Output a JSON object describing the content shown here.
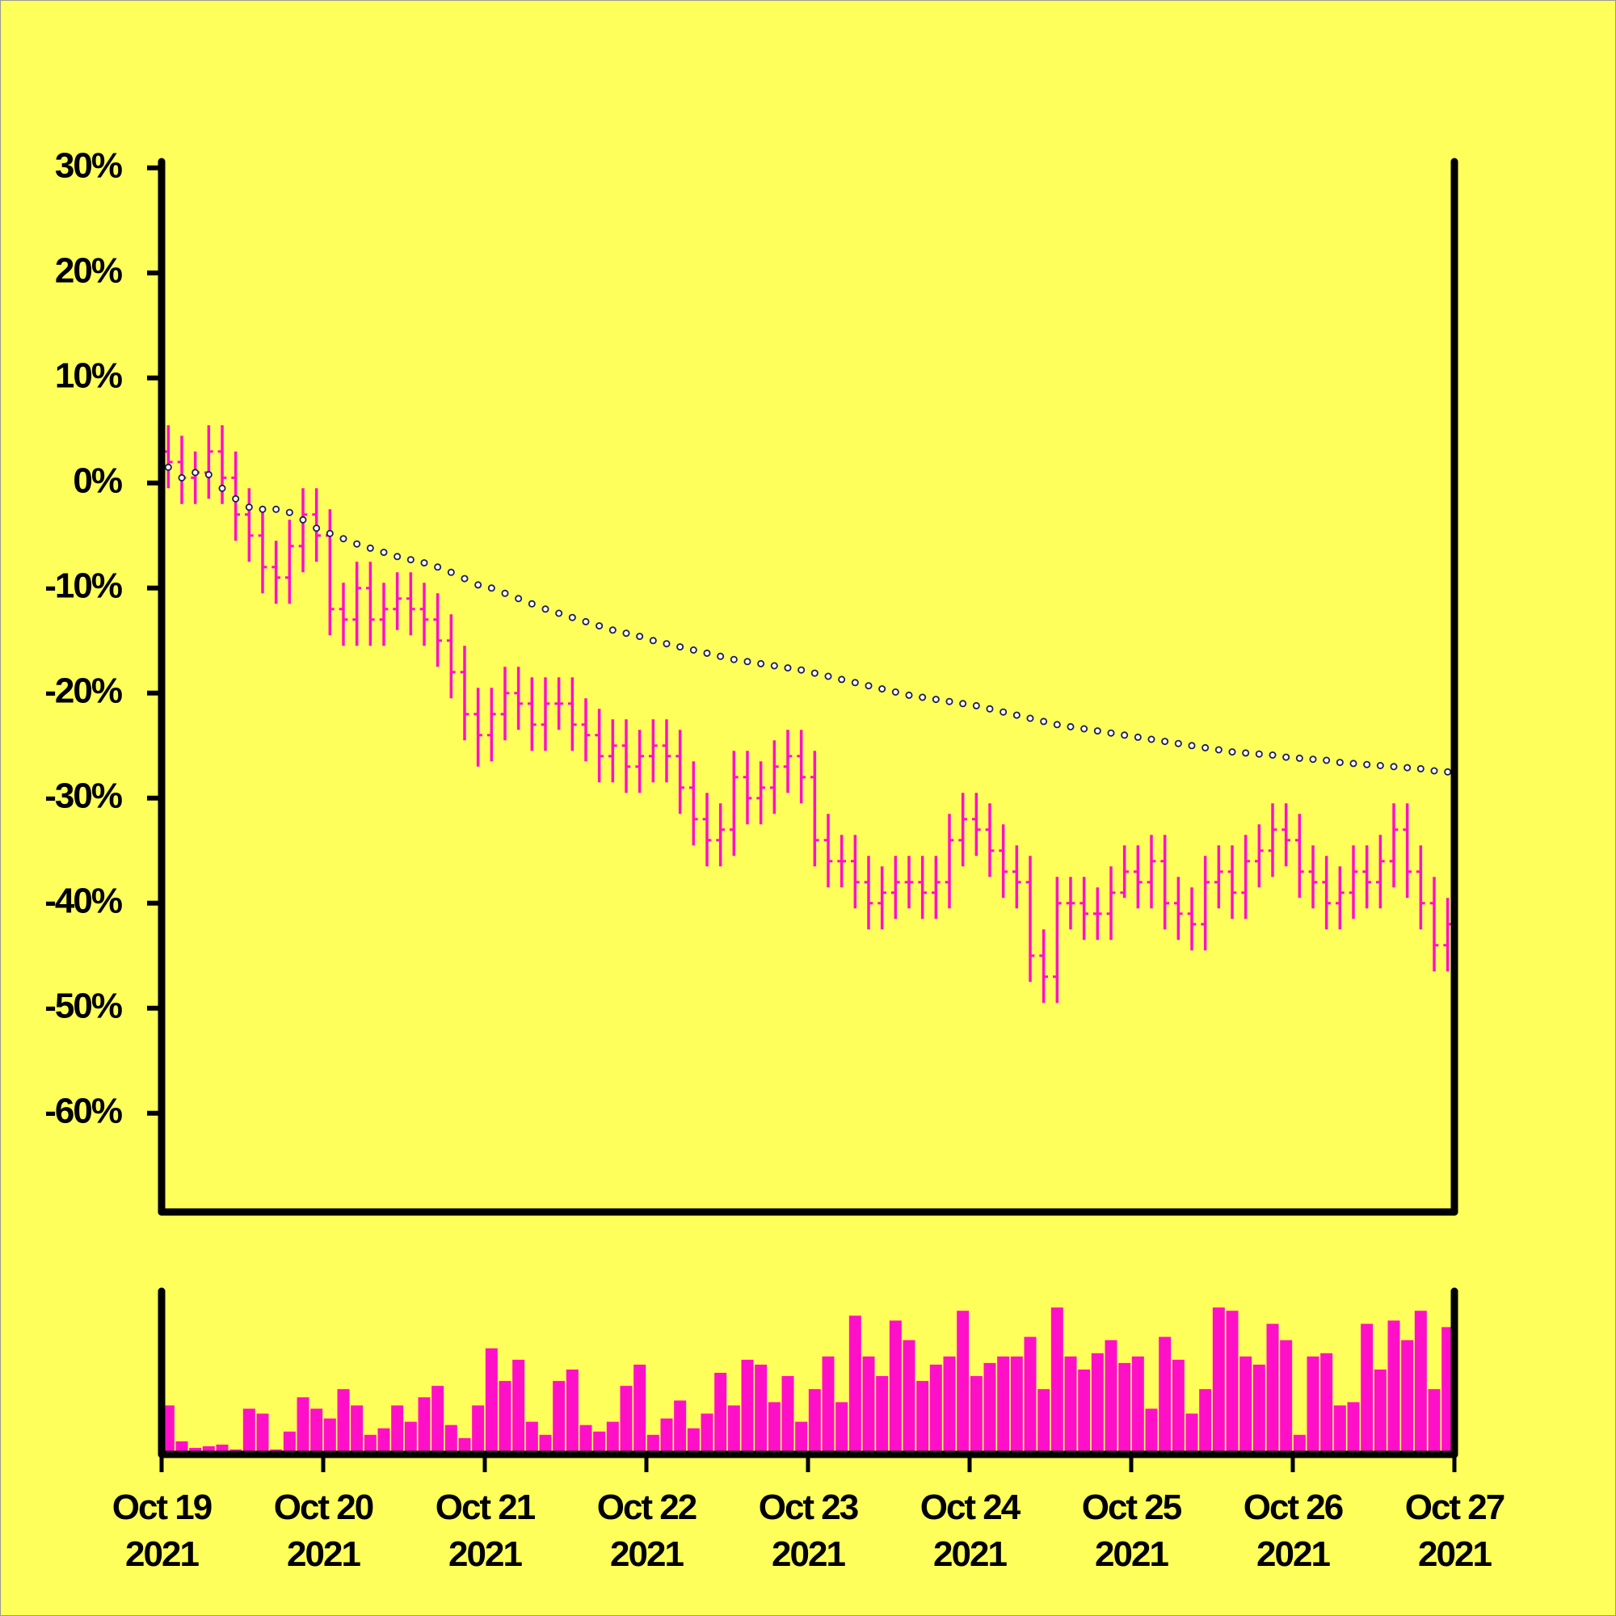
{
  "chart_data": {
    "type": "ohlc",
    "xticks": [
      "Oct 19 2021",
      "Oct 20 2021",
      "Oct 21 2021",
      "Oct 22 2021",
      "Oct 23 2021",
      "Oct 24 2021",
      "Oct 25 2021",
      "Oct 26 2021",
      "Oct 27 2021"
    ],
    "ylim": [
      -69.4,
      30.6
    ],
    "yticks": [
      {
        "value": 30,
        "label": "30%"
      },
      {
        "value": 20,
        "label": "20%"
      },
      {
        "value": 10,
        "label": "10%"
      },
      {
        "value": 0,
        "label": "0%"
      },
      {
        "value": -10,
        "label": "-10%"
      },
      {
        "value": -20,
        "label": "-20%"
      },
      {
        "value": -30,
        "label": "-30%"
      },
      {
        "value": -40,
        "label": "-40%"
      },
      {
        "value": -50,
        "label": "-50%"
      },
      {
        "value": -60,
        "label": "-60%"
      }
    ],
    "bars": {
      "color": "#ff10c8",
      "open": [
        3,
        2,
        0.5,
        1,
        3,
        0.5,
        -3,
        -5,
        -8,
        -9,
        -6,
        -3,
        -5,
        -12,
        -13,
        -10,
        -13,
        -12,
        -11,
        -12,
        -13,
        -15,
        -18,
        -22,
        -24,
        -22,
        -20,
        -21,
        -23,
        -21,
        -21,
        -23,
        -24,
        -26,
        -25,
        -27,
        -26,
        -25,
        -26,
        -29,
        -32,
        -34,
        -33,
        -28,
        -30,
        -29,
        -27,
        -26,
        -28,
        -34,
        -36,
        -36,
        -38,
        -40,
        -39,
        -38,
        -38,
        -39,
        -38,
        -34,
        -32,
        -33,
        -35,
        -37,
        -38,
        -45,
        -47,
        -40,
        -40,
        -41,
        -41,
        -39,
        -37,
        -38,
        -36,
        -40,
        -41,
        -42,
        -38,
        -37,
        -39,
        -36,
        -35,
        -33,
        -34,
        -37,
        -38,
        -40,
        -39,
        -37,
        -38,
        -36,
        -33,
        -37,
        -40,
        -44
      ],
      "high": [
        5.5,
        4.5,
        3,
        5.5,
        5.5,
        3,
        -0.5,
        -2.5,
        -5.5,
        -3.5,
        -0.5,
        -0.5,
        -2.5,
        -9.5,
        -7.5,
        -7.5,
        -9.5,
        -8.5,
        -8.5,
        -9.5,
        -10.5,
        -12.5,
        -15.5,
        -19.5,
        -19.5,
        -17.5,
        -17.5,
        -18.5,
        -18.5,
        -18.5,
        -18.5,
        -20.5,
        -21.5,
        -22.5,
        -22.5,
        -23.5,
        -22.5,
        -22.5,
        -23.5,
        -26.5,
        -29.5,
        -30.5,
        -25.5,
        -25.5,
        -26.5,
        -24.5,
        -23.5,
        -23.5,
        -25.5,
        -31.5,
        -33.5,
        -33.5,
        -35.5,
        -36.5,
        -35.5,
        -35.5,
        -35.5,
        -35.5,
        -31.5,
        -29.5,
        -29.5,
        -30.5,
        -32.5,
        -34.5,
        -35.5,
        -42.5,
        -37.5,
        -37.5,
        -37.5,
        -38.5,
        -36.5,
        -34.5,
        -34.5,
        -33.5,
        -33.5,
        -37.5,
        -38.5,
        -35.5,
        -34.5,
        -34.5,
        -33.5,
        -32.5,
        -30.5,
        -30.5,
        -31.5,
        -34.5,
        -35.5,
        -36.5,
        -34.5,
        -34.5,
        -33.5,
        -30.5,
        -30.5,
        -34.5,
        -37.5,
        -39.5
      ],
      "low": [
        -0.5,
        -2,
        -2,
        -1.5,
        -2,
        -5.5,
        -7.5,
        -10.5,
        -11.5,
        -11.5,
        -8.5,
        -7.5,
        -14.5,
        -15.5,
        -15.5,
        -15.5,
        -15.5,
        -14,
        -14.5,
        -15.5,
        -17.5,
        -20.5,
        -24.5,
        -27,
        -26.5,
        -24.5,
        -23.5,
        -25.5,
        -25.5,
        -23.5,
        -25.5,
        -26.5,
        -28.5,
        -28.5,
        -29.5,
        -29.5,
        -28.5,
        -28.5,
        -31.5,
        -34.5,
        -36.5,
        -36.5,
        -35.5,
        -32.5,
        -32.5,
        -31.5,
        -29.5,
        -30.5,
        -36.5,
        -38.5,
        -38.5,
        -40.5,
        -42.5,
        -42.5,
        -41.5,
        -40.5,
        -41.5,
        -41.5,
        -40.5,
        -36.5,
        -35.5,
        -37.5,
        -39.5,
        -40.5,
        -47.5,
        -49.5,
        -49.5,
        -42.5,
        -43.5,
        -43.5,
        -43.5,
        -39.5,
        -40.5,
        -40.5,
        -42.5,
        -43.5,
        -44.5,
        -44.5,
        -40.5,
        -41.5,
        -41.5,
        -38.5,
        -37.5,
        -36.5,
        -39.5,
        -40.5,
        -42.5,
        -42.5,
        -41.5,
        -40.5,
        -40.5,
        -38.5,
        -39.5,
        -42.5,
        -46.5,
        -46.5
      ],
      "close": [
        2,
        0.5,
        1,
        3,
        0.5,
        -3,
        -5,
        -8,
        -9,
        -6,
        -3,
        -5,
        -12,
        -13,
        -10,
        -13,
        -12,
        -11,
        -12,
        -13,
        -15,
        -18,
        -22,
        -24,
        -22,
        -20,
        -21,
        -23,
        -21,
        -21,
        -23,
        -24,
        -26,
        -25,
        -27,
        -26,
        -25,
        -26,
        -29,
        -32,
        -34,
        -33,
        -28,
        -30,
        -29,
        -27,
        -26,
        -28,
        -34,
        -36,
        -36,
        -38,
        -40,
        -39,
        -38,
        -38,
        -39,
        -38,
        -34,
        -32,
        -33,
        -35,
        -37,
        -38,
        -45,
        -47,
        -40,
        -40,
        -41,
        -41,
        -39,
        -37,
        -38,
        -36,
        -40,
        -41,
        -42,
        -38,
        -37,
        -39,
        -36,
        -35,
        -33,
        -34,
        -37,
        -38,
        -40,
        -39,
        -37,
        -38,
        -36,
        -33,
        -37,
        -40,
        -44,
        -42
      ]
    },
    "line": {
      "color": "#1c1c50",
      "values": [
        1.5,
        0.5,
        1,
        0.8,
        -0.5,
        -1.5,
        -2.3,
        -2.5,
        -2.5,
        -2.8,
        -3.5,
        -4.3,
        -4.8,
        -5.3,
        -5.8,
        -6.2,
        -6.6,
        -7,
        -7.3,
        -7.6,
        -8,
        -8.5,
        -9.1,
        -9.7,
        -10,
        -10.5,
        -11,
        -11.5,
        -12,
        -12.4,
        -12.8,
        -13.2,
        -13.6,
        -14,
        -14.3,
        -14.6,
        -15,
        -15.3,
        -15.6,
        -15.9,
        -16.2,
        -16.5,
        -16.8,
        -17,
        -17.2,
        -17.4,
        -17.6,
        -17.8,
        -18.1,
        -18.4,
        -18.7,
        -19,
        -19.3,
        -19.6,
        -19.9,
        -20.2,
        -20.4,
        -20.6,
        -20.8,
        -21,
        -21.2,
        -21.5,
        -21.8,
        -22.1,
        -22.4,
        -22.7,
        -23,
        -23.2,
        -23.4,
        -23.6,
        -23.8,
        -24,
        -24.2,
        -24.4,
        -24.6,
        -24.8,
        -25,
        -25.2,
        -25.4,
        -25.6,
        -25.7,
        -25.8,
        -25.9,
        -26.1,
        -26.2,
        -26.3,
        -26.4,
        -26.6,
        -26.7,
        -26.8,
        -26.9,
        -27,
        -27.1,
        -27.2,
        -27.4,
        -27.5
      ]
    },
    "volume": {
      "color": "#ff10c8",
      "ylim": [
        0,
        100
      ],
      "values": [
        30,
        8,
        4,
        5,
        6,
        3,
        28,
        25,
        3,
        14,
        35,
        28,
        22,
        40,
        30,
        12,
        16,
        30,
        20,
        35,
        42,
        18,
        10,
        30,
        65,
        45,
        58,
        20,
        12,
        45,
        52,
        18,
        14,
        20,
        42,
        55,
        12,
        22,
        33,
        16,
        25,
        50,
        30,
        58,
        55,
        32,
        48,
        20,
        40,
        60,
        32,
        85,
        60,
        48,
        82,
        70,
        45,
        55,
        60,
        88,
        48,
        56,
        60,
        60,
        72,
        40,
        90,
        60,
        52,
        62,
        70,
        56,
        60,
        28,
        72,
        58,
        25,
        40,
        90,
        88,
        60,
        55,
        80,
        70,
        12,
        60,
        62,
        30,
        32,
        80,
        52,
        82,
        70,
        88,
        40,
        78
      ]
    }
  }
}
